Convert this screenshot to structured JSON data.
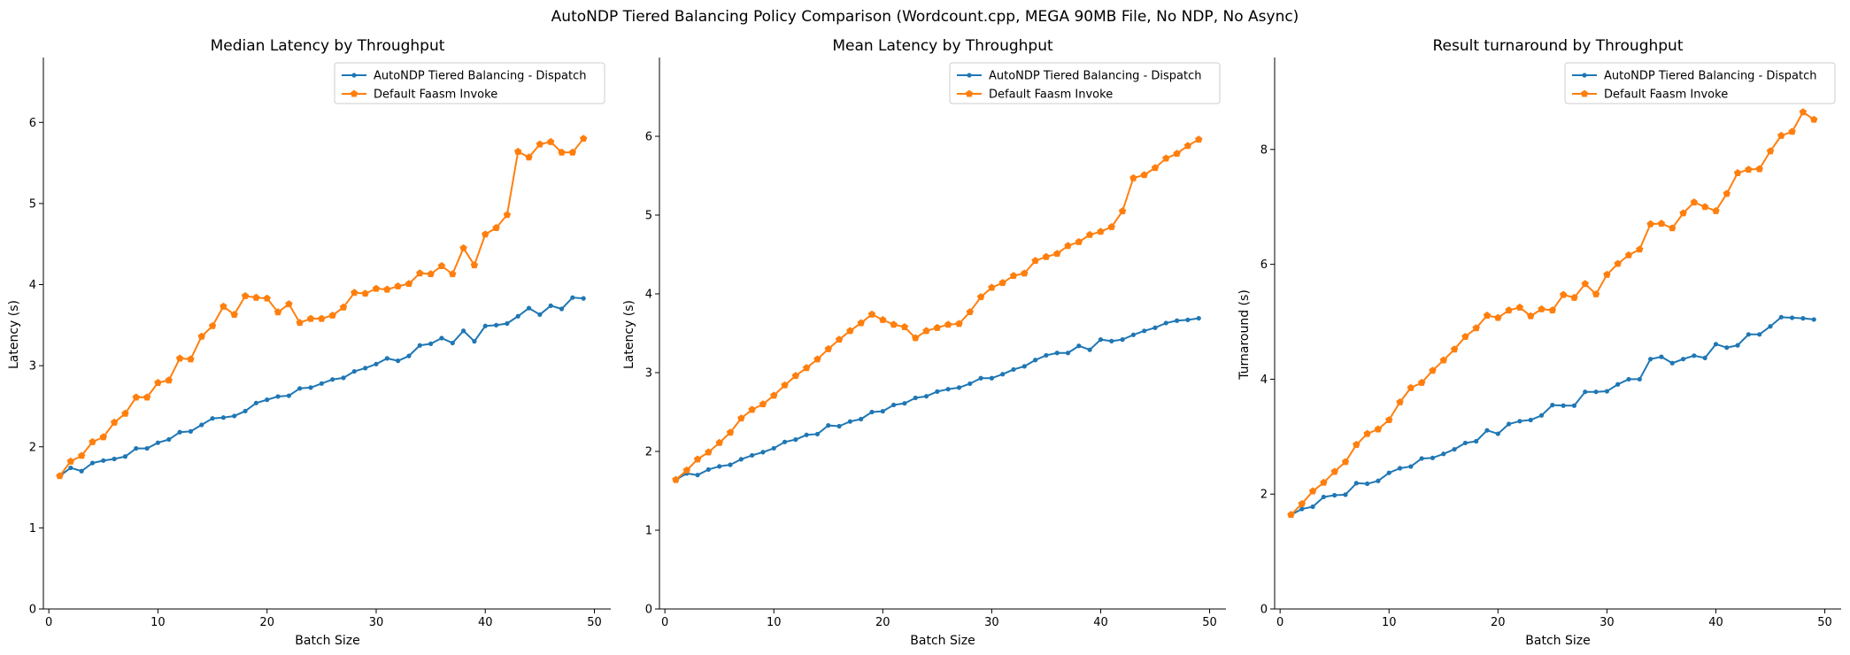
{
  "figure": {
    "suptitle": "AutoNDP Tiered Balancing Policy Comparison (Wordcount.cpp, MEGA 90MB File, No NDP, No Async)"
  },
  "colors": {
    "dispatch": "#1f77b4",
    "faasm": "#ff7f0e"
  },
  "chart_data": [
    {
      "type": "line",
      "title": "Median Latency by Throughput",
      "xlabel": "Batch Size",
      "ylabel": "Latency (s)",
      "xlim": [
        -0.5,
        51.5
      ],
      "ylim": [
        0,
        6.8
      ],
      "xticks": [
        0,
        10,
        20,
        30,
        40,
        50
      ],
      "yticks": [
        0,
        1,
        2,
        3,
        4,
        5,
        6
      ],
      "grid": false,
      "legend_loc": "top-right",
      "x": [
        1,
        2,
        3,
        4,
        5,
        6,
        7,
        8,
        9,
        10,
        11,
        12,
        13,
        14,
        15,
        16,
        17,
        18,
        19,
        20,
        21,
        22,
        23,
        24,
        25,
        26,
        27,
        28,
        29,
        30,
        31,
        32,
        33,
        34,
        35,
        36,
        37,
        38,
        39,
        40,
        41,
        42,
        43,
        44,
        45,
        46,
        47,
        48,
        49
      ],
      "series": [
        {
          "name": "AutoNDP Tiered Balancing - Dispatch",
          "color": "#1f77b4",
          "marker": "dot",
          "values": [
            1.64,
            1.74,
            1.7,
            1.8,
            1.83,
            1.85,
            1.88,
            1.98,
            1.98,
            2.05,
            2.09,
            2.18,
            2.19,
            2.27,
            2.35,
            2.36,
            2.38,
            2.44,
            2.54,
            2.58,
            2.62,
            2.63,
            2.72,
            2.73,
            2.78,
            2.83,
            2.85,
            2.93,
            2.97,
            3.02,
            3.09,
            3.06,
            3.12,
            3.25,
            3.27,
            3.34,
            3.28,
            3.43,
            3.3,
            3.49,
            3.5,
            3.52,
            3.61,
            3.71,
            3.63,
            3.74,
            3.7,
            3.84,
            3.83
          ]
        },
        {
          "name": "Default Faasm Invoke",
          "color": "#ff7f0e",
          "marker": "pentagon",
          "values": [
            1.64,
            1.82,
            1.89,
            2.06,
            2.12,
            2.3,
            2.41,
            2.61,
            2.61,
            2.79,
            2.82,
            3.09,
            3.08,
            3.36,
            3.49,
            3.73,
            3.63,
            3.86,
            3.84,
            3.83,
            3.66,
            3.76,
            3.53,
            3.58,
            3.58,
            3.62,
            3.72,
            3.9,
            3.89,
            3.95,
            3.94,
            3.98,
            4.01,
            4.14,
            4.13,
            4.23,
            4.13,
            4.45,
            4.24,
            4.62,
            4.7,
            4.86,
            5.64,
            5.57,
            5.73,
            5.76,
            5.63,
            5.63,
            5.8
          ]
        }
      ]
    },
    {
      "type": "line",
      "title": "Mean Latency by Throughput",
      "xlabel": "Batch Size",
      "ylabel": "Latency (s)",
      "xlim": [
        -0.5,
        51.5
      ],
      "ylim": [
        0,
        7.0
      ],
      "xticks": [
        0,
        10,
        20,
        30,
        40,
        50
      ],
      "yticks": [
        0,
        1,
        2,
        3,
        4,
        5,
        6
      ],
      "grid": false,
      "legend_loc": "top-right",
      "x": [
        1,
        2,
        3,
        4,
        5,
        6,
        7,
        8,
        9,
        10,
        11,
        12,
        13,
        14,
        15,
        16,
        17,
        18,
        19,
        20,
        21,
        22,
        23,
        24,
        25,
        26,
        27,
        28,
        29,
        30,
        31,
        32,
        33,
        34,
        35,
        36,
        37,
        38,
        39,
        40,
        41,
        42,
        43,
        44,
        45,
        46,
        47,
        48,
        49
      ],
      "series": [
        {
          "name": "AutoNDP Tiered Balancing - Dispatch",
          "color": "#1f77b4",
          "marker": "dot",
          "values": [
            1.64,
            1.72,
            1.7,
            1.77,
            1.81,
            1.83,
            1.9,
            1.95,
            1.99,
            2.04,
            2.12,
            2.15,
            2.21,
            2.22,
            2.33,
            2.32,
            2.38,
            2.41,
            2.5,
            2.51,
            2.59,
            2.61,
            2.68,
            2.7,
            2.76,
            2.79,
            2.81,
            2.86,
            2.93,
            2.93,
            2.98,
            3.04,
            3.08,
            3.16,
            3.22,
            3.25,
            3.25,
            3.34,
            3.29,
            3.42,
            3.4,
            3.42,
            3.48,
            3.53,
            3.57,
            3.63,
            3.66,
            3.67,
            3.69
          ]
        },
        {
          "name": "Default Faasm Invoke",
          "color": "#ff7f0e",
          "marker": "pentagon",
          "values": [
            1.64,
            1.76,
            1.9,
            1.99,
            2.11,
            2.24,
            2.42,
            2.53,
            2.6,
            2.71,
            2.84,
            2.96,
            3.06,
            3.17,
            3.3,
            3.42,
            3.53,
            3.63,
            3.74,
            3.67,
            3.61,
            3.58,
            3.44,
            3.53,
            3.57,
            3.61,
            3.62,
            3.77,
            3.96,
            4.08,
            4.14,
            4.23,
            4.26,
            4.42,
            4.47,
            4.51,
            4.61,
            4.66,
            4.75,
            4.79,
            4.85,
            5.05,
            5.47,
            5.51,
            5.6,
            5.72,
            5.78,
            5.88,
            5.96
          ]
        }
      ]
    },
    {
      "type": "line",
      "title": "Result turnaround by Throughput",
      "xlabel": "Batch Size",
      "ylabel": "Turnaround (s)",
      "xlim": [
        -0.5,
        51.5
      ],
      "ylim": [
        0,
        9.6
      ],
      "xticks": [
        0,
        10,
        20,
        30,
        40,
        50
      ],
      "yticks": [
        0,
        2,
        4,
        6,
        8
      ],
      "grid": false,
      "legend_loc": "top-right",
      "x": [
        1,
        2,
        3,
        4,
        5,
        6,
        7,
        8,
        9,
        10,
        11,
        12,
        13,
        14,
        15,
        16,
        17,
        18,
        19,
        20,
        21,
        22,
        23,
        24,
        25,
        26,
        27,
        28,
        29,
        30,
        31,
        32,
        33,
        34,
        35,
        36,
        37,
        38,
        39,
        40,
        41,
        42,
        43,
        44,
        45,
        46,
        47,
        48,
        49
      ],
      "series": [
        {
          "name": "AutoNDP Tiered Balancing - Dispatch",
          "color": "#1f77b4",
          "marker": "dot",
          "values": [
            1.64,
            1.74,
            1.78,
            1.95,
            1.98,
            1.99,
            2.19,
            2.18,
            2.23,
            2.37,
            2.45,
            2.48,
            2.62,
            2.63,
            2.7,
            2.78,
            2.89,
            2.92,
            3.11,
            3.05,
            3.22,
            3.27,
            3.29,
            3.37,
            3.55,
            3.54,
            3.54,
            3.78,
            3.78,
            3.79,
            3.91,
            4.0,
            4.0,
            4.35,
            4.39,
            4.28,
            4.35,
            4.41,
            4.37,
            4.61,
            4.55,
            4.59,
            4.78,
            4.78,
            4.92,
            5.08,
            5.07,
            5.06,
            5.04
          ]
        },
        {
          "name": "Default Faasm Invoke",
          "color": "#ff7f0e",
          "marker": "pentagon",
          "values": [
            1.64,
            1.83,
            2.05,
            2.2,
            2.39,
            2.56,
            2.86,
            3.05,
            3.13,
            3.29,
            3.6,
            3.85,
            3.94,
            4.15,
            4.33,
            4.52,
            4.74,
            4.89,
            5.11,
            5.07,
            5.2,
            5.25,
            5.1,
            5.22,
            5.2,
            5.47,
            5.42,
            5.66,
            5.48,
            5.82,
            6.01,
            6.16,
            6.26,
            6.7,
            6.71,
            6.63,
            6.89,
            7.08,
            7.0,
            6.93,
            7.23,
            7.59,
            7.65,
            7.66,
            7.97,
            8.24,
            8.31,
            8.65,
            8.52
          ]
        }
      ]
    }
  ]
}
